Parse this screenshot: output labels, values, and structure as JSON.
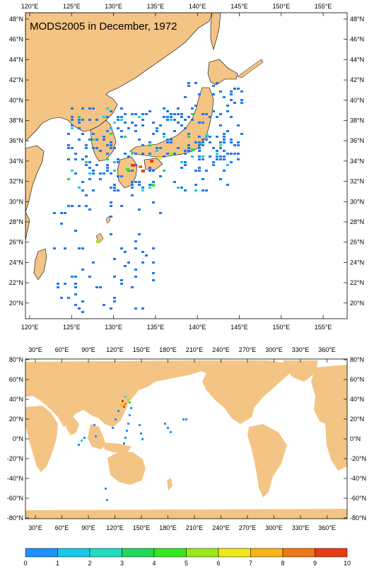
{
  "title": "MODS2005 in December, 1972",
  "regional_map": {
    "top_lon_labels": [
      "120°E",
      "125°E",
      "130°E",
      "135°E",
      "140°E",
      "145°E",
      "150°E",
      "155°E"
    ],
    "bottom_lon_labels": [
      "120°E",
      "125°E",
      "130°E",
      "135°E",
      "140°E",
      "145°E",
      "150°E",
      "155°E"
    ],
    "lat_labels": [
      "48°N",
      "46°N",
      "44°N",
      "42°N",
      "40°N",
      "38°N",
      "36°N",
      "34°N",
      "32°N",
      "30°N",
      "28°N",
      "26°N",
      "24°N",
      "22°N",
      "20°N"
    ]
  },
  "global_map": {
    "lon_labels": [
      "30°E",
      "60°E",
      "90°E",
      "120°E",
      "150°E",
      "180°E",
      "210°E",
      "240°E",
      "270°E",
      "300°E",
      "330°E",
      "360°E"
    ],
    "lat_labels": [
      "80°N",
      "60°N",
      "40°N",
      "20°N",
      "0°N",
      "-20°N",
      "-40°N",
      "-60°N",
      "-80°N"
    ]
  },
  "colorbar": {
    "labels": [
      "0",
      "1",
      "2",
      "3",
      "4",
      "5",
      "6",
      "7",
      "8",
      "9",
      "10"
    ],
    "colors": [
      "#1a5ad6",
      "#1e90ff",
      "#18c8e8",
      "#20dcc0",
      "#22d85a",
      "#34e81e",
      "#9ae81a",
      "#f0e81a",
      "#f8b418",
      "#f07818",
      "#e83c14"
    ]
  },
  "colors": {
    "land": "#f4c484",
    "water": "#ffffff",
    "obs_main": "#1e78f0"
  }
}
